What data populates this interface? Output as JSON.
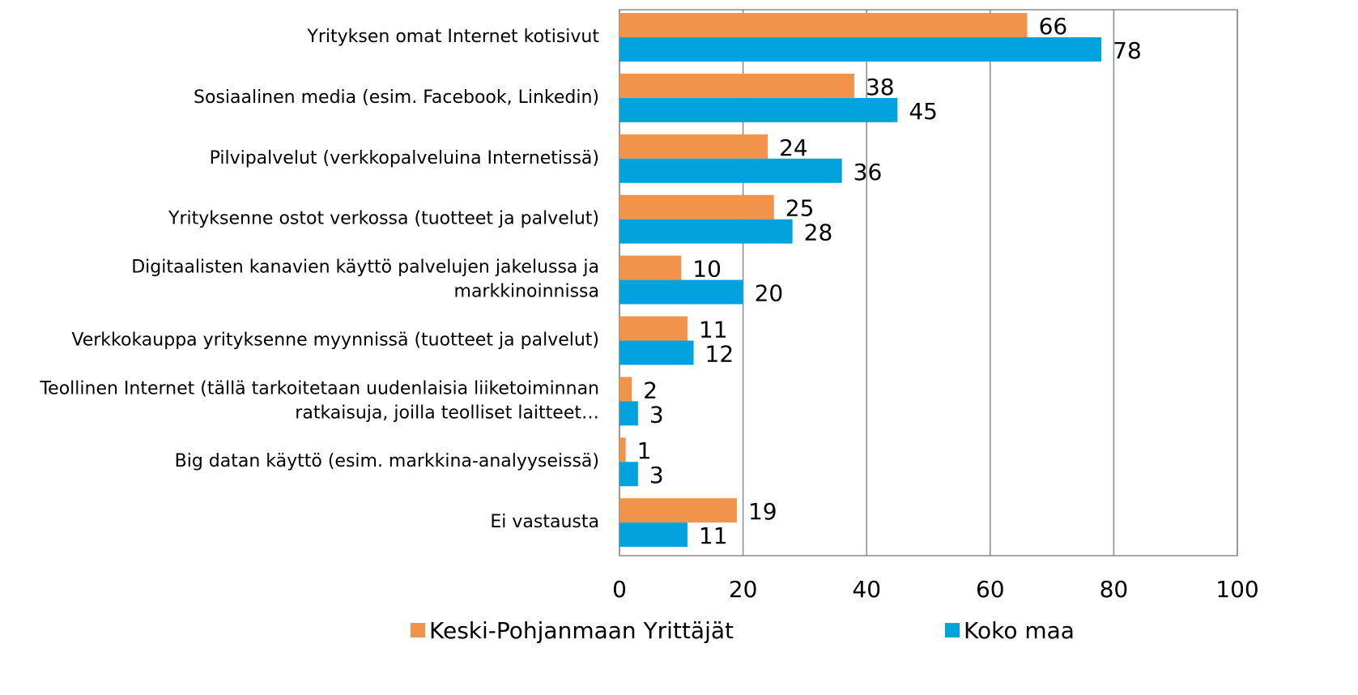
{
  "chart_data": {
    "type": "hbar",
    "categories": [
      "Yrityksen omat Internet kotisivut",
      "Sosiaalinen media (esim. Facebook, Linkedin)",
      "Pilvipalvelut  (verkkopalveluina Internetissä)",
      "Yrityksenne ostot verkossa (tuotteet ja palvelut)",
      "Digitaalisten kanavien käyttö palvelujen jakelussa ja markkinoinnissa",
      "Verkkokauppa yrityksenne myynnissä (tuotteet ja palvelut)",
      "Teollinen Internet (tällä tarkoitetaan uudenlaisia liiketoiminnan ratkaisuja, joilla teolliset laitteet…",
      "Big datan käyttö (esim. markkina-analyyseissä)",
      "Ei vastausta"
    ],
    "series": [
      {
        "name": "Keski-Pohjanmaan Yrittäjät",
        "color": "#f2934b",
        "values": [
          66,
          38,
          24,
          25,
          10,
          11,
          2,
          1,
          19
        ]
      },
      {
        "name": "Koko maa",
        "color": "#00a3dd",
        "values": [
          78,
          45,
          36,
          28,
          20,
          12,
          3,
          3,
          11
        ]
      }
    ],
    "xlim": [
      0,
      100
    ],
    "xticks": [
      0,
      20,
      40,
      60,
      80,
      100
    ],
    "grid": true,
    "legend": "bottom"
  }
}
